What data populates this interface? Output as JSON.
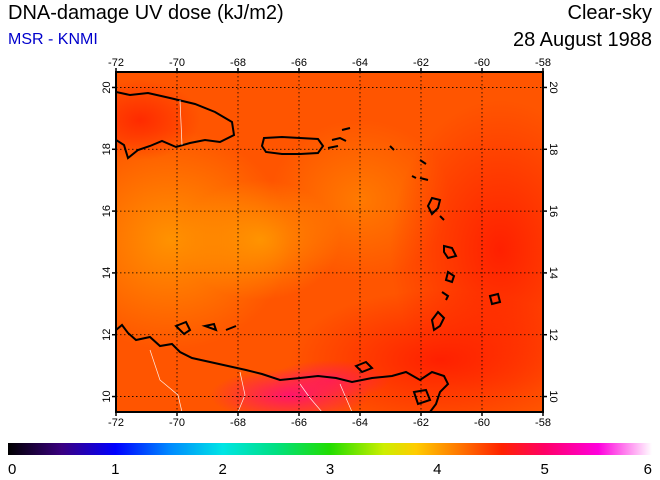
{
  "header": {
    "title": "DNA-damage UV dose (kJ/m2)",
    "subtitle": "MSR - KNMI",
    "mode": "Clear-sky",
    "date": "28 August 1988"
  },
  "map": {
    "lon_range": [
      -72,
      -58
    ],
    "lat_range": [
      9.5,
      20.5
    ],
    "lon_ticks": [
      -72,
      -70,
      -68,
      -66,
      -64,
      -62,
      -60,
      -58
    ],
    "lat_ticks": [
      10,
      12,
      14,
      16,
      18,
      20
    ],
    "lon_labels": [
      "-72",
      "-70",
      "-68",
      "-66",
      "-64",
      "-62",
      "-60",
      "-58"
    ],
    "lat_labels": [
      "10",
      "12",
      "14",
      "16",
      "18",
      "20"
    ],
    "grid": true,
    "dominant_value_range": [
      3.9,
      5.2
    ],
    "colors": {
      "land_outline": "#000000",
      "border": "#ffffff",
      "grid": "#000000"
    }
  },
  "colorbar": {
    "range": [
      0,
      6
    ],
    "ticks": [
      0,
      1,
      2,
      3,
      4,
      5,
      6
    ],
    "tick_labels": [
      "0",
      "1",
      "2",
      "3",
      "4",
      "5",
      "6"
    ],
    "stops": [
      {
        "v": 0.0,
        "c": "#000000"
      },
      {
        "v": 0.5,
        "c": "#3a0080"
      },
      {
        "v": 1.0,
        "c": "#0000ff"
      },
      {
        "v": 1.5,
        "c": "#0088ff"
      },
      {
        "v": 2.0,
        "c": "#00e5e5"
      },
      {
        "v": 2.5,
        "c": "#00e080"
      },
      {
        "v": 3.0,
        "c": "#22dd00"
      },
      {
        "v": 3.5,
        "c": "#ccee00"
      },
      {
        "v": 3.8,
        "c": "#ffcc00"
      },
      {
        "v": 4.2,
        "c": "#ff7700"
      },
      {
        "v": 4.6,
        "c": "#ff2200"
      },
      {
        "v": 5.0,
        "c": "#ff0066"
      },
      {
        "v": 5.5,
        "c": "#ff00dd"
      },
      {
        "v": 6.0,
        "c": "#ffffff"
      }
    ]
  }
}
